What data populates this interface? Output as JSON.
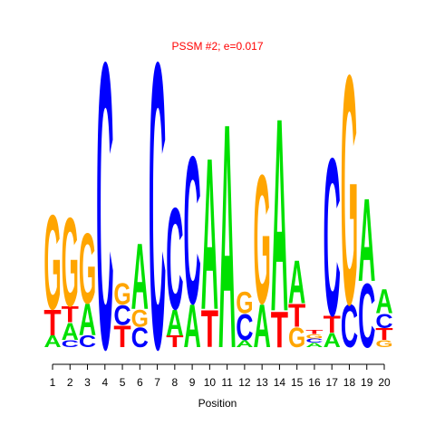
{
  "chart_data": {
    "type": "logo",
    "title": "PSSM #2; e=0.017",
    "x_label": "Position",
    "x": [
      1,
      2,
      3,
      4,
      5,
      6,
      7,
      8,
      9,
      10,
      11,
      12,
      13,
      14,
      15,
      16,
      17,
      18,
      19,
      20
    ],
    "xlim": [
      1,
      20
    ],
    "xticks": [
      1,
      2,
      3,
      4,
      5,
      6,
      7,
      8,
      9,
      10,
      11,
      12,
      13,
      14,
      15,
      16,
      17,
      18,
      19,
      20
    ],
    "ylim": [
      0,
      2
    ],
    "colors": {
      "A": "#00e000",
      "C": "#0000ff",
      "G": "#ffa500",
      "T": "#ff0000"
    },
    "stacks": [
      [
        {
          "letter": "A",
          "height": 0.08
        },
        {
          "letter": "T",
          "height": 0.18
        },
        {
          "letter": "G",
          "height": 0.66
        }
      ],
      [
        {
          "letter": "C",
          "height": 0.05
        },
        {
          "letter": "A",
          "height": 0.12
        },
        {
          "letter": "T",
          "height": 0.11
        },
        {
          "letter": "G",
          "height": 0.62
        }
      ],
      [
        {
          "letter": "C",
          "height": 0.08
        },
        {
          "letter": "A",
          "height": 0.22
        },
        {
          "letter": "G",
          "height": 0.49
        }
      ],
      [
        {
          "letter": "C",
          "height": 2.0
        }
      ],
      [
        {
          "letter": "T",
          "height": 0.15
        },
        {
          "letter": "C",
          "height": 0.14
        },
        {
          "letter": "G",
          "height": 0.15
        }
      ],
      [
        {
          "letter": "C",
          "height": 0.14
        },
        {
          "letter": "G",
          "height": 0.12
        },
        {
          "letter": "A",
          "height": 0.46
        }
      ],
      [
        {
          "letter": "C",
          "height": 2.0
        }
      ],
      [
        {
          "letter": "T",
          "height": 0.08
        },
        {
          "letter": "A",
          "height": 0.18
        },
        {
          "letter": "C",
          "height": 0.71
        }
      ],
      [
        {
          "letter": "A",
          "height": 0.3
        },
        {
          "letter": "C",
          "height": 1.03
        }
      ],
      [
        {
          "letter": "T",
          "height": 0.26
        },
        {
          "letter": "A",
          "height": 1.06
        }
      ],
      [
        {
          "letter": "A",
          "height": 1.57
        }
      ],
      [
        {
          "letter": "A",
          "height": 0.05
        },
        {
          "letter": "C",
          "height": 0.18
        },
        {
          "letter": "G",
          "height": 0.15
        }
      ],
      [
        {
          "letter": "A",
          "height": 0.3
        },
        {
          "letter": "G",
          "height": 0.9
        }
      ],
      [
        {
          "letter": "T",
          "height": 0.25
        },
        {
          "letter": "A",
          "height": 1.35
        }
      ],
      [
        {
          "letter": "G",
          "height": 0.14
        },
        {
          "letter": "T",
          "height": 0.16
        },
        {
          "letter": "A",
          "height": 0.3
        }
      ],
      [
        {
          "letter": "A",
          "height": 0.03
        },
        {
          "letter": "C",
          "height": 0.03
        },
        {
          "letter": "G",
          "height": 0.03
        },
        {
          "letter": "T",
          "height": 0.03
        }
      ],
      [
        {
          "letter": "A",
          "height": 0.1
        },
        {
          "letter": "T",
          "height": 0.12
        },
        {
          "letter": "C",
          "height": 1.1
        }
      ],
      [
        {
          "letter": "C",
          "height": 0.3
        },
        {
          "letter": "G",
          "height": 1.6
        }
      ],
      [
        {
          "letter": "C",
          "height": 0.45
        },
        {
          "letter": "A",
          "height": 0.58
        }
      ],
      [
        {
          "letter": "G",
          "height": 0.05
        },
        {
          "letter": "T",
          "height": 0.08
        },
        {
          "letter": "C",
          "height": 0.1
        },
        {
          "letter": "A",
          "height": 0.17
        }
      ]
    ]
  }
}
